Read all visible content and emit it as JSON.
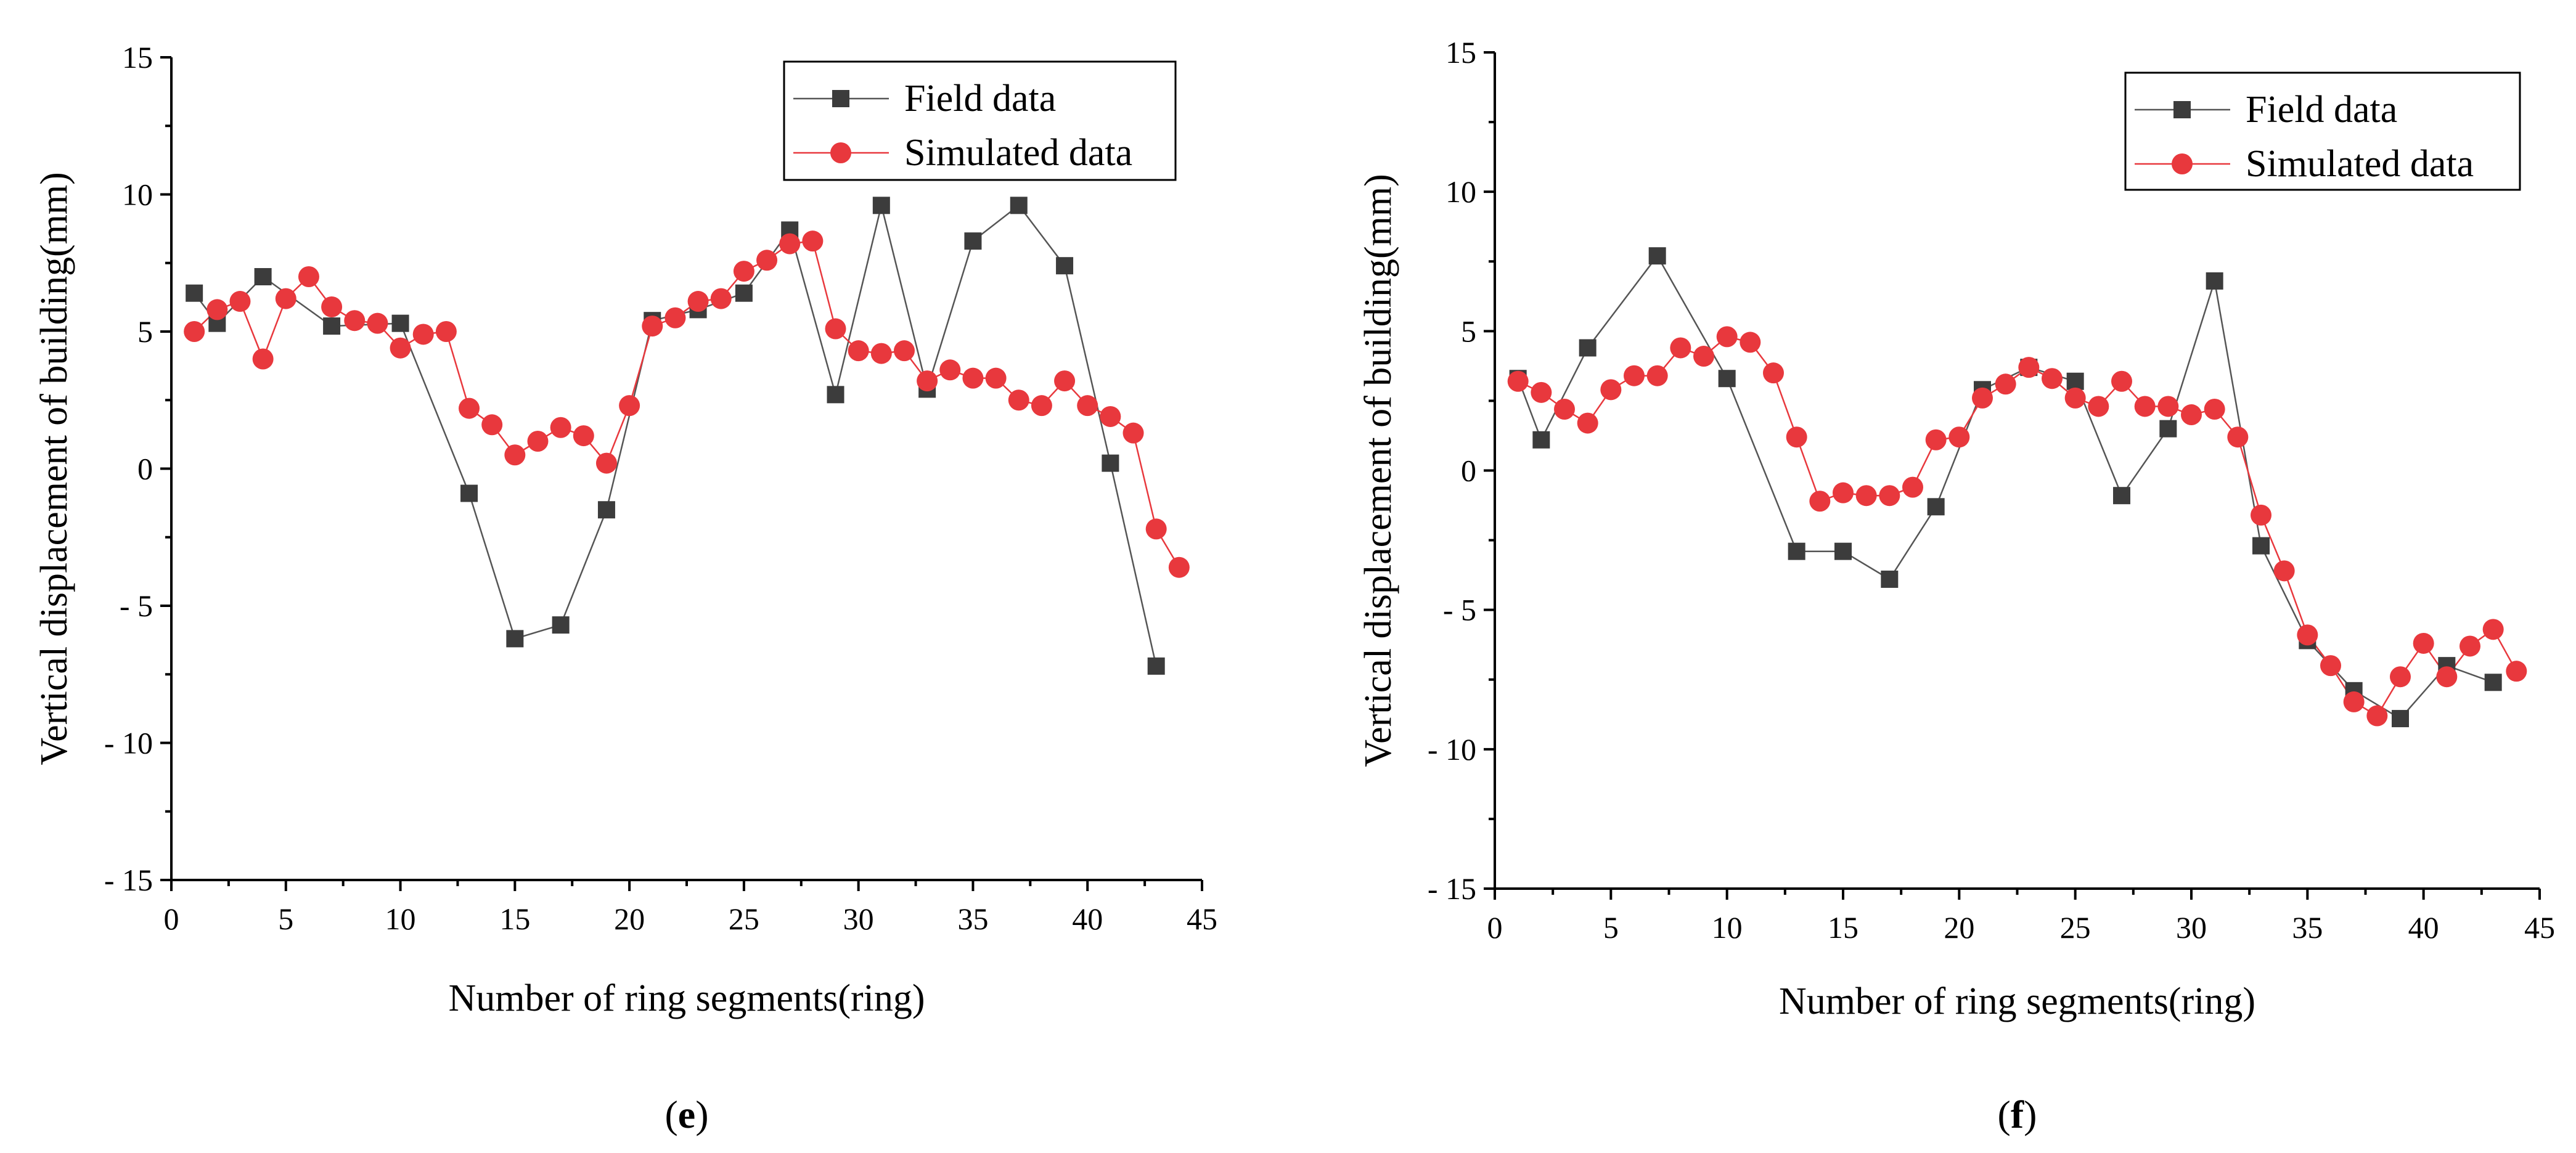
{
  "chart_data": [
    {
      "type": "line",
      "panel_label": "e",
      "title": "",
      "xlabel": "Number of ring segments(ring)",
      "ylabel": "Vertical displacement of building(mm)",
      "xlim": [
        0,
        45
      ],
      "ylim": [
        -15,
        15
      ],
      "xticks": [
        0,
        5,
        10,
        15,
        20,
        25,
        30,
        35,
        40,
        45
      ],
      "yticks": [
        -15,
        -10,
        -5,
        0,
        5,
        10,
        15
      ],
      "xtick_labels": [
        "0",
        "5",
        "10",
        "15",
        "20",
        "25",
        "30",
        "35",
        "40",
        "45"
      ],
      "ytick_labels": [
        "- 15",
        "- 10",
        "- 5",
        "0",
        "5",
        "10",
        "15"
      ],
      "legend_position": "top-right",
      "series": [
        {
          "name": "Field data",
          "marker": "square",
          "color": "#3c3c3c",
          "x": [
            1,
            2,
            4,
            7,
            10,
            13,
            15,
            17,
            19,
            21,
            23,
            25,
            27,
            29,
            31,
            33,
            35,
            37,
            39,
            41,
            43
          ],
          "y": [
            6.4,
            5.3,
            7.0,
            5.2,
            5.3,
            -0.9,
            -6.2,
            -5.7,
            -1.5,
            5.4,
            5.8,
            6.4,
            8.7,
            2.7,
            9.6,
            2.9,
            8.3,
            9.6,
            7.4,
            0.2,
            -7.2
          ]
        },
        {
          "name": "Simulated data",
          "marker": "circle",
          "color": "#e8383d",
          "x": [
            1,
            2,
            3,
            4,
            5,
            6,
            7,
            8,
            9,
            10,
            11,
            12,
            13,
            14,
            15,
            16,
            17,
            18,
            19,
            20,
            21,
            22,
            23,
            24,
            25,
            26,
            27,
            28,
            29,
            30,
            31,
            32,
            33,
            34,
            35,
            36,
            37,
            38,
            39,
            40,
            41,
            42,
            43,
            44
          ],
          "y": [
            5.0,
            5.8,
            6.1,
            4.0,
            6.2,
            7.0,
            5.9,
            5.4,
            5.3,
            4.4,
            4.9,
            5.0,
            2.2,
            1.6,
            0.5,
            1.0,
            1.5,
            1.2,
            0.2,
            2.3,
            5.2,
            5.5,
            6.1,
            6.2,
            7.2,
            7.6,
            8.2,
            8.3,
            5.1,
            4.3,
            4.2,
            4.3,
            3.2,
            3.6,
            3.3,
            3.3,
            2.5,
            2.3,
            3.2,
            2.3,
            1.9,
            1.3,
            -2.2,
            -3.6
          ]
        }
      ]
    },
    {
      "type": "line",
      "panel_label": "f",
      "title": "",
      "xlabel": "Number of ring segments(ring)",
      "ylabel": "Vertical displacement of building(mm)",
      "xlim": [
        0,
        45
      ],
      "ylim": [
        -15,
        15
      ],
      "xticks": [
        0,
        5,
        10,
        15,
        20,
        25,
        30,
        35,
        40,
        45
      ],
      "yticks": [
        -15,
        -10,
        -5,
        0,
        5,
        10,
        15
      ],
      "xtick_labels": [
        "0",
        "5",
        "10",
        "15",
        "20",
        "25",
        "30",
        "35",
        "40",
        "45"
      ],
      "ytick_labels": [
        "- 15",
        "- 10",
        "- 5",
        "0",
        "5",
        "10",
        "15"
      ],
      "legend_position": "top-right",
      "series": [
        {
          "name": "Field data",
          "marker": "square",
          "color": "#3c3c3c",
          "x": [
            1,
            2,
            4,
            7,
            10,
            13,
            15,
            17,
            19,
            21,
            23,
            25,
            27,
            29,
            31,
            33,
            35,
            37,
            39,
            41,
            43
          ],
          "y": [
            3.3,
            1.1,
            4.4,
            7.7,
            3.3,
            -2.9,
            -2.9,
            -3.9,
            -1.3,
            2.9,
            3.7,
            3.2,
            -0.9,
            1.5,
            6.8,
            -2.7,
            -6.1,
            -7.9,
            -8.9,
            -7.0,
            -7.6
          ]
        },
        {
          "name": "Simulated data",
          "marker": "circle",
          "color": "#e8383d",
          "x": [
            1,
            2,
            3,
            4,
            5,
            6,
            7,
            8,
            9,
            10,
            11,
            12,
            13,
            14,
            15,
            16,
            17,
            18,
            19,
            20,
            21,
            22,
            23,
            24,
            25,
            26,
            27,
            28,
            29,
            30,
            31,
            32,
            33,
            34,
            35,
            36,
            37,
            38,
            39,
            40,
            41,
            42,
            43,
            44
          ],
          "y": [
            3.2,
            2.8,
            2.2,
            1.7,
            2.9,
            3.4,
            3.4,
            4.4,
            4.1,
            4.8,
            4.6,
            3.5,
            1.2,
            -1.1,
            -0.8,
            -0.9,
            -0.9,
            -0.6,
            1.1,
            1.2,
            2.6,
            3.1,
            3.7,
            3.3,
            2.6,
            2.3,
            3.2,
            2.3,
            2.3,
            2.0,
            2.2,
            1.2,
            -1.6,
            -3.6,
            -5.9,
            -7.0,
            -8.3,
            -8.8,
            -7.4,
            -6.2,
            -7.4,
            -6.3,
            -5.7,
            -7.2
          ]
        }
      ]
    }
  ]
}
